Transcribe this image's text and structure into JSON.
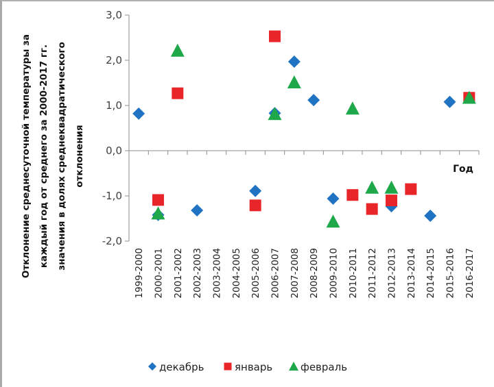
{
  "chart_data": {
    "type": "scatter",
    "title": "",
    "ylabel_lines": [
      "Отклонение среднесуточной температуры за",
      "каждый год от среднего за 2000-2017 гг.",
      "значения в долях среднеквадратического",
      "отклонения"
    ],
    "xlabel": "Год",
    "ylim": [
      -2.0,
      3.0
    ],
    "yticks": [
      3.0,
      2.0,
      1.0,
      0.0,
      -1.0,
      -2.0
    ],
    "ytick_labels": [
      "3,0",
      "2,0",
      "1,0",
      "0,0",
      "-1,0",
      "-2,0"
    ],
    "grid": false,
    "legend_position": "bottom",
    "categories": [
      "1999-2000",
      "2000-2001",
      "2001-2002",
      "2002-2003",
      "2003-2004",
      "2004-2005",
      "2005-2006",
      "2006-2007",
      "2007-2008",
      "2008-2009",
      "2009-2010",
      "2010-2011",
      "2011-2012",
      "2012-2013",
      "2013-2014",
      "2014-2015",
      "2015-2016",
      "2016-2017"
    ],
    "series": [
      {
        "name": "декабрь",
        "marker": "diamond",
        "color": "#1f73c2",
        "values": [
          0.82,
          -1.42,
          null,
          -1.32,
          null,
          null,
          -0.89,
          0.83,
          1.97,
          1.12,
          -1.06,
          null,
          null,
          -1.23,
          null,
          -1.44,
          1.08,
          null
        ]
      },
      {
        "name": "январь",
        "marker": "square",
        "color": "#e8262a",
        "values": [
          null,
          -1.09,
          1.27,
          null,
          null,
          null,
          -1.21,
          2.53,
          null,
          null,
          null,
          -0.98,
          -1.29,
          -1.1,
          -0.85,
          null,
          null,
          1.17
        ]
      },
      {
        "name": "февраль",
        "marker": "triangle",
        "color": "#1fa84a",
        "values": [
          null,
          -1.4,
          2.2,
          null,
          null,
          null,
          null,
          0.8,
          1.5,
          null,
          -1.58,
          0.92,
          -0.83,
          -0.83,
          null,
          null,
          null,
          1.16
        ]
      }
    ]
  }
}
